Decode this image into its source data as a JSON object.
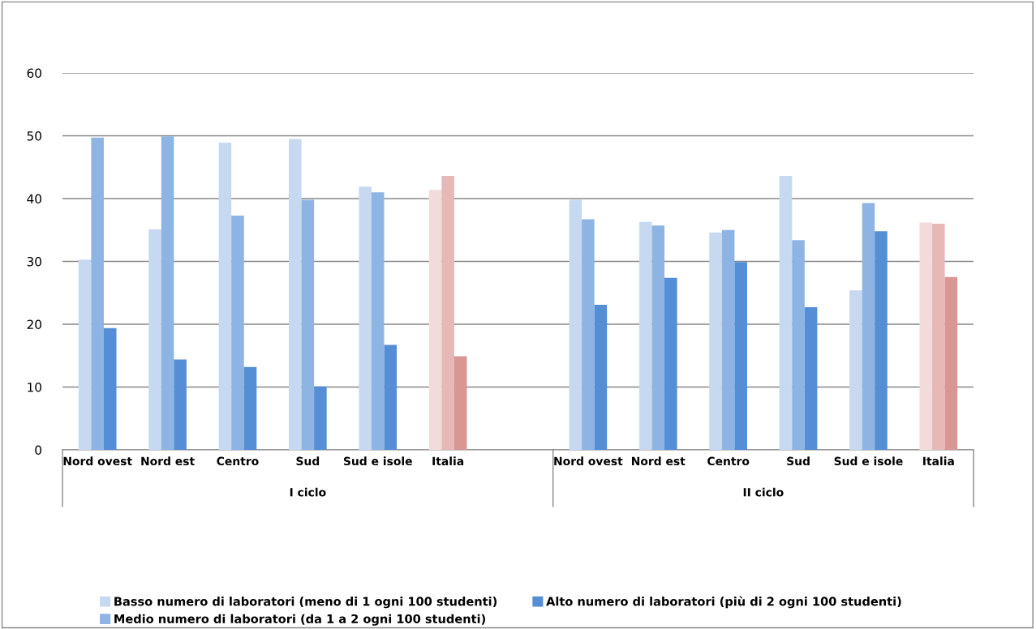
{
  "chart_data": {
    "type": "bar",
    "categories": [
      "Nord ovest",
      "Nord est",
      "Centro",
      "Sud",
      "Sud e isole",
      "Italia",
      null,
      "Nord ovest",
      "Nord est",
      "Centro",
      "Sud",
      "Sud e isole",
      "Italia"
    ],
    "series": [
      {
        "name": "Basso numero di laboratori (meno di 1 ogni 100 studenti)",
        "color": "#c6d9f1",
        "colors": [
          "#c6d9f1",
          "#c6d9f1",
          "#c6d9f1",
          "#c6d9f1",
          "#c6d9f1",
          "#f2dcdb",
          "#c6d9f1",
          "#c6d9f1",
          "#c6d9f1",
          "#c6d9f1",
          "#c6d9f1",
          "#c6d9f1",
          "#f2dcdb"
        ],
        "values": [
          30.3,
          35.1,
          48.9,
          49.5,
          41.9,
          41.4,
          null,
          39.8,
          36.3,
          34.6,
          43.6,
          25.4,
          36.2
        ]
      },
      {
        "name": "Medio numero di laboratori (da 1 a 2 ogni 100 studenti)",
        "color": "#8eb4e3",
        "colors": [
          "#8eb4e3",
          "#8eb4e3",
          "#8eb4e3",
          "#8eb4e3",
          "#8eb4e3",
          "#e6b9b8",
          "#8eb4e3",
          "#8eb4e3",
          "#8eb4e3",
          "#8eb4e3",
          "#8eb4e3",
          "#8eb4e3",
          "#e6b9b8"
        ],
        "values": [
          49.7,
          49.9,
          37.3,
          39.8,
          41.0,
          43.6,
          null,
          36.7,
          35.7,
          35.0,
          33.4,
          39.3,
          36.0
        ]
      },
      {
        "name": "Alto numero di laboratori (più di 2 ogni 100 studenti)",
        "color": "#558ed5",
        "colors": [
          "#558ed5",
          "#558ed5",
          "#558ed5",
          "#558ed5",
          "#558ed5",
          "#d99694",
          "#558ed5",
          "#558ed5",
          "#558ed5",
          "#558ed5",
          "#558ed5",
          "#558ed5",
          "#d99694"
        ],
        "values": [
          19.4,
          14.4,
          13.2,
          10.1,
          16.7,
          14.9,
          null,
          23.1,
          27.4,
          29.9,
          22.7,
          34.8,
          27.5
        ]
      }
    ],
    "annotations": [
      "I ciclo",
      "II ciclo"
    ],
    "ylim": [
      0,
      60
    ],
    "yticks": [
      0,
      10,
      20,
      30,
      40,
      50,
      60
    ],
    "grid": "y",
    "legend": "bottom"
  }
}
